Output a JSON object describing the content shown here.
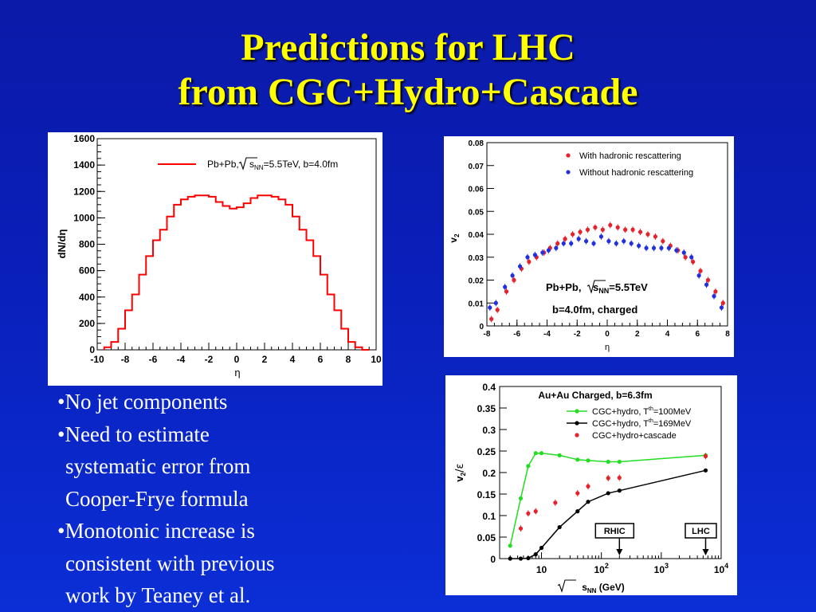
{
  "slide": {
    "title_line1": "Predictions for LHC",
    "title_line2": "from CGC+Hydro+Cascade",
    "colors": {
      "title": "#ffff00",
      "background": "#0b22c4"
    },
    "bullets": [
      {
        "marker": "•",
        "lines": [
          "No jet components"
        ]
      },
      {
        "marker": "•",
        "lines": [
          "Need to estimate",
          "systematic error from",
          "Cooper-Frye formula"
        ]
      },
      {
        "marker": "•",
        "lines": [
          "Monotonic increase is",
          "consistent with previous",
          "work by Teaney et al."
        ]
      }
    ]
  },
  "chart_data": [
    {
      "type": "line",
      "style": "histogram",
      "xlabel": "η",
      "ylabel": "dN/dη",
      "xlim": [
        -10,
        10
      ],
      "ylim": [
        0,
        1600
      ],
      "xticks": [
        "-10",
        "-8",
        "-6",
        "-4",
        "-2",
        "0",
        "2",
        "4",
        "6",
        "8",
        "10"
      ],
      "yticks": [
        "0",
        "200",
        "400",
        "600",
        "800",
        "1000",
        "1200",
        "1400",
        "1600"
      ],
      "legend_position": "top-right",
      "legend": [
        "Pb+Pb, √sNN=5.5TeV, b=4.0fm"
      ],
      "color": "#ff0000",
      "bin_width": 0.5,
      "bin_starts": [
        -9.5,
        -9,
        -8.5,
        -8,
        -7.5,
        -7,
        -6.5,
        -6,
        -5.5,
        -5,
        -4.5,
        -4,
        -3.5,
        -3,
        -2.5,
        -2,
        -1.5,
        -1,
        -0.5,
        0,
        0.5,
        1,
        1.5,
        2,
        2.5,
        3,
        3.5,
        4,
        4.5,
        5,
        5.5,
        6,
        6.5,
        7,
        7.5,
        8,
        8.5,
        9
      ],
      "values": [
        20,
        60,
        160,
        300,
        420,
        570,
        710,
        830,
        910,
        1010,
        1100,
        1140,
        1160,
        1170,
        1170,
        1160,
        1120,
        1090,
        1070,
        1080,
        1110,
        1150,
        1170,
        1170,
        1160,
        1140,
        1100,
        1010,
        910,
        830,
        710,
        570,
        420,
        300,
        160,
        60,
        20,
        0
      ]
    },
    {
      "type": "scatter",
      "xlabel": "η",
      "ylabel": "v2",
      "xlim": [
        -8,
        8
      ],
      "ylim": [
        0,
        0.08
      ],
      "xticks": [
        "-8",
        "-6",
        "-4",
        "-2",
        "0",
        "2",
        "4",
        "6",
        "8"
      ],
      "yticks": [
        "0",
        "0.01",
        "0.02",
        "0.03",
        "0.04",
        "0.05",
        "0.06",
        "0.07",
        "0.08"
      ],
      "legend_position": "top-right",
      "annotation": [
        "Pb+Pb, √sNN=5.5TeV",
        "b=4.0fm, charged"
      ],
      "series": [
        {
          "name": "With hadronic rescattering",
          "color": "#e8202a",
          "x": [
            -7.7,
            -7.3,
            -6.7,
            -6.2,
            -5.7,
            -5.2,
            -4.7,
            -4.2,
            -3.8,
            -3.3,
            -2.8,
            -2.3,
            -1.8,
            -1.3,
            -0.8,
            -0.3,
            0.2,
            0.7,
            1.2,
            1.7,
            2.2,
            2.7,
            3.2,
            3.7,
            4.2,
            4.7,
            5.2,
            5.7,
            6.2,
            6.7,
            7.2,
            7.7
          ],
          "y": [
            0.003,
            0.007,
            0.015,
            0.02,
            0.025,
            0.028,
            0.03,
            0.032,
            0.034,
            0.036,
            0.038,
            0.04,
            0.041,
            0.042,
            0.043,
            0.042,
            0.044,
            0.043,
            0.042,
            0.042,
            0.041,
            0.04,
            0.039,
            0.037,
            0.035,
            0.033,
            0.03,
            0.028,
            0.024,
            0.02,
            0.015,
            0.01
          ]
        },
        {
          "name": "Without hadronic rescattering",
          "color": "#2030e0",
          "x": [
            -7.8,
            -7.4,
            -6.8,
            -6.3,
            -5.8,
            -5.3,
            -4.8,
            -4.3,
            -3.9,
            -3.4,
            -2.9,
            -2.4,
            -1.9,
            -1.4,
            -0.9,
            -0.4,
            0.1,
            0.6,
            1.1,
            1.6,
            2.1,
            2.6,
            3.1,
            3.6,
            4.1,
            4.6,
            5.1,
            5.6,
            6.1,
            6.6,
            7.1,
            7.6
          ],
          "y": [
            0.008,
            0.01,
            0.017,
            0.022,
            0.026,
            0.03,
            0.031,
            0.032,
            0.033,
            0.034,
            0.036,
            0.036,
            0.038,
            0.037,
            0.036,
            0.039,
            0.037,
            0.036,
            0.037,
            0.036,
            0.035,
            0.034,
            0.034,
            0.034,
            0.034,
            0.033,
            0.032,
            0.03,
            0.022,
            0.018,
            0.013,
            0.008
          ]
        }
      ]
    },
    {
      "type": "line",
      "xscale": "log",
      "xlabel": "√sNN (GeV)",
      "ylabel": "v2/ε",
      "xlim": [
        2,
        10000
      ],
      "ylim": [
        0,
        0.4
      ],
      "xticks": [
        {
          "v": 10,
          "label": "10"
        },
        {
          "v": 100,
          "label": "10",
          "sup": "2"
        },
        {
          "v": 1000,
          "label": "10",
          "sup": "3"
        },
        {
          "v": 10000,
          "label": "10",
          "sup": "4"
        }
      ],
      "yticks": [
        "0",
        "0.05",
        "0.1",
        "0.15",
        "0.2",
        "0.25",
        "0.3",
        "0.35",
        "0.4"
      ],
      "title": "Au+Au Charged, b=6.3fm",
      "legend_position": "top-right",
      "markers": [
        {
          "label": "RHIC",
          "x": 200
        },
        {
          "label": "LHC",
          "x": 5500
        }
      ],
      "series": [
        {
          "name": "CGC+hydro, Tth=100MeV",
          "legend_main": "CGC+hydro, T",
          "legend_sup": "th",
          "legend_tail": "=100MeV",
          "color": "#22dd22",
          "style": "line+markers",
          "x": [
            3,
            4.5,
            6,
            8,
            10,
            20,
            40,
            60,
            130,
            200,
            5500
          ],
          "y": [
            0.03,
            0.14,
            0.215,
            0.245,
            0.245,
            0.24,
            0.23,
            0.228,
            0.225,
            0.225,
            0.24
          ]
        },
        {
          "name": "CGC+hydro, Tth=169MeV",
          "legend_main": "CGC+hydro, T",
          "legend_sup": "th",
          "legend_tail": "=169MeV",
          "color": "#000000",
          "style": "line+markers",
          "x": [
            3,
            4.5,
            6,
            8,
            10,
            20,
            40,
            60,
            130,
            200,
            5500
          ],
          "y": [
            0.0,
            0.0,
            0.001,
            0.01,
            0.025,
            0.073,
            0.11,
            0.132,
            0.152,
            0.158,
            0.205
          ]
        },
        {
          "name": "CGC+hydro+cascade",
          "color": "#e8202a",
          "style": "markers",
          "x": [
            4.5,
            6,
            8,
            17,
            40,
            60,
            130,
            200,
            5500
          ],
          "y": [
            0.07,
            0.105,
            0.11,
            0.13,
            0.152,
            0.168,
            0.187,
            0.188,
            0.238
          ]
        }
      ]
    }
  ]
}
